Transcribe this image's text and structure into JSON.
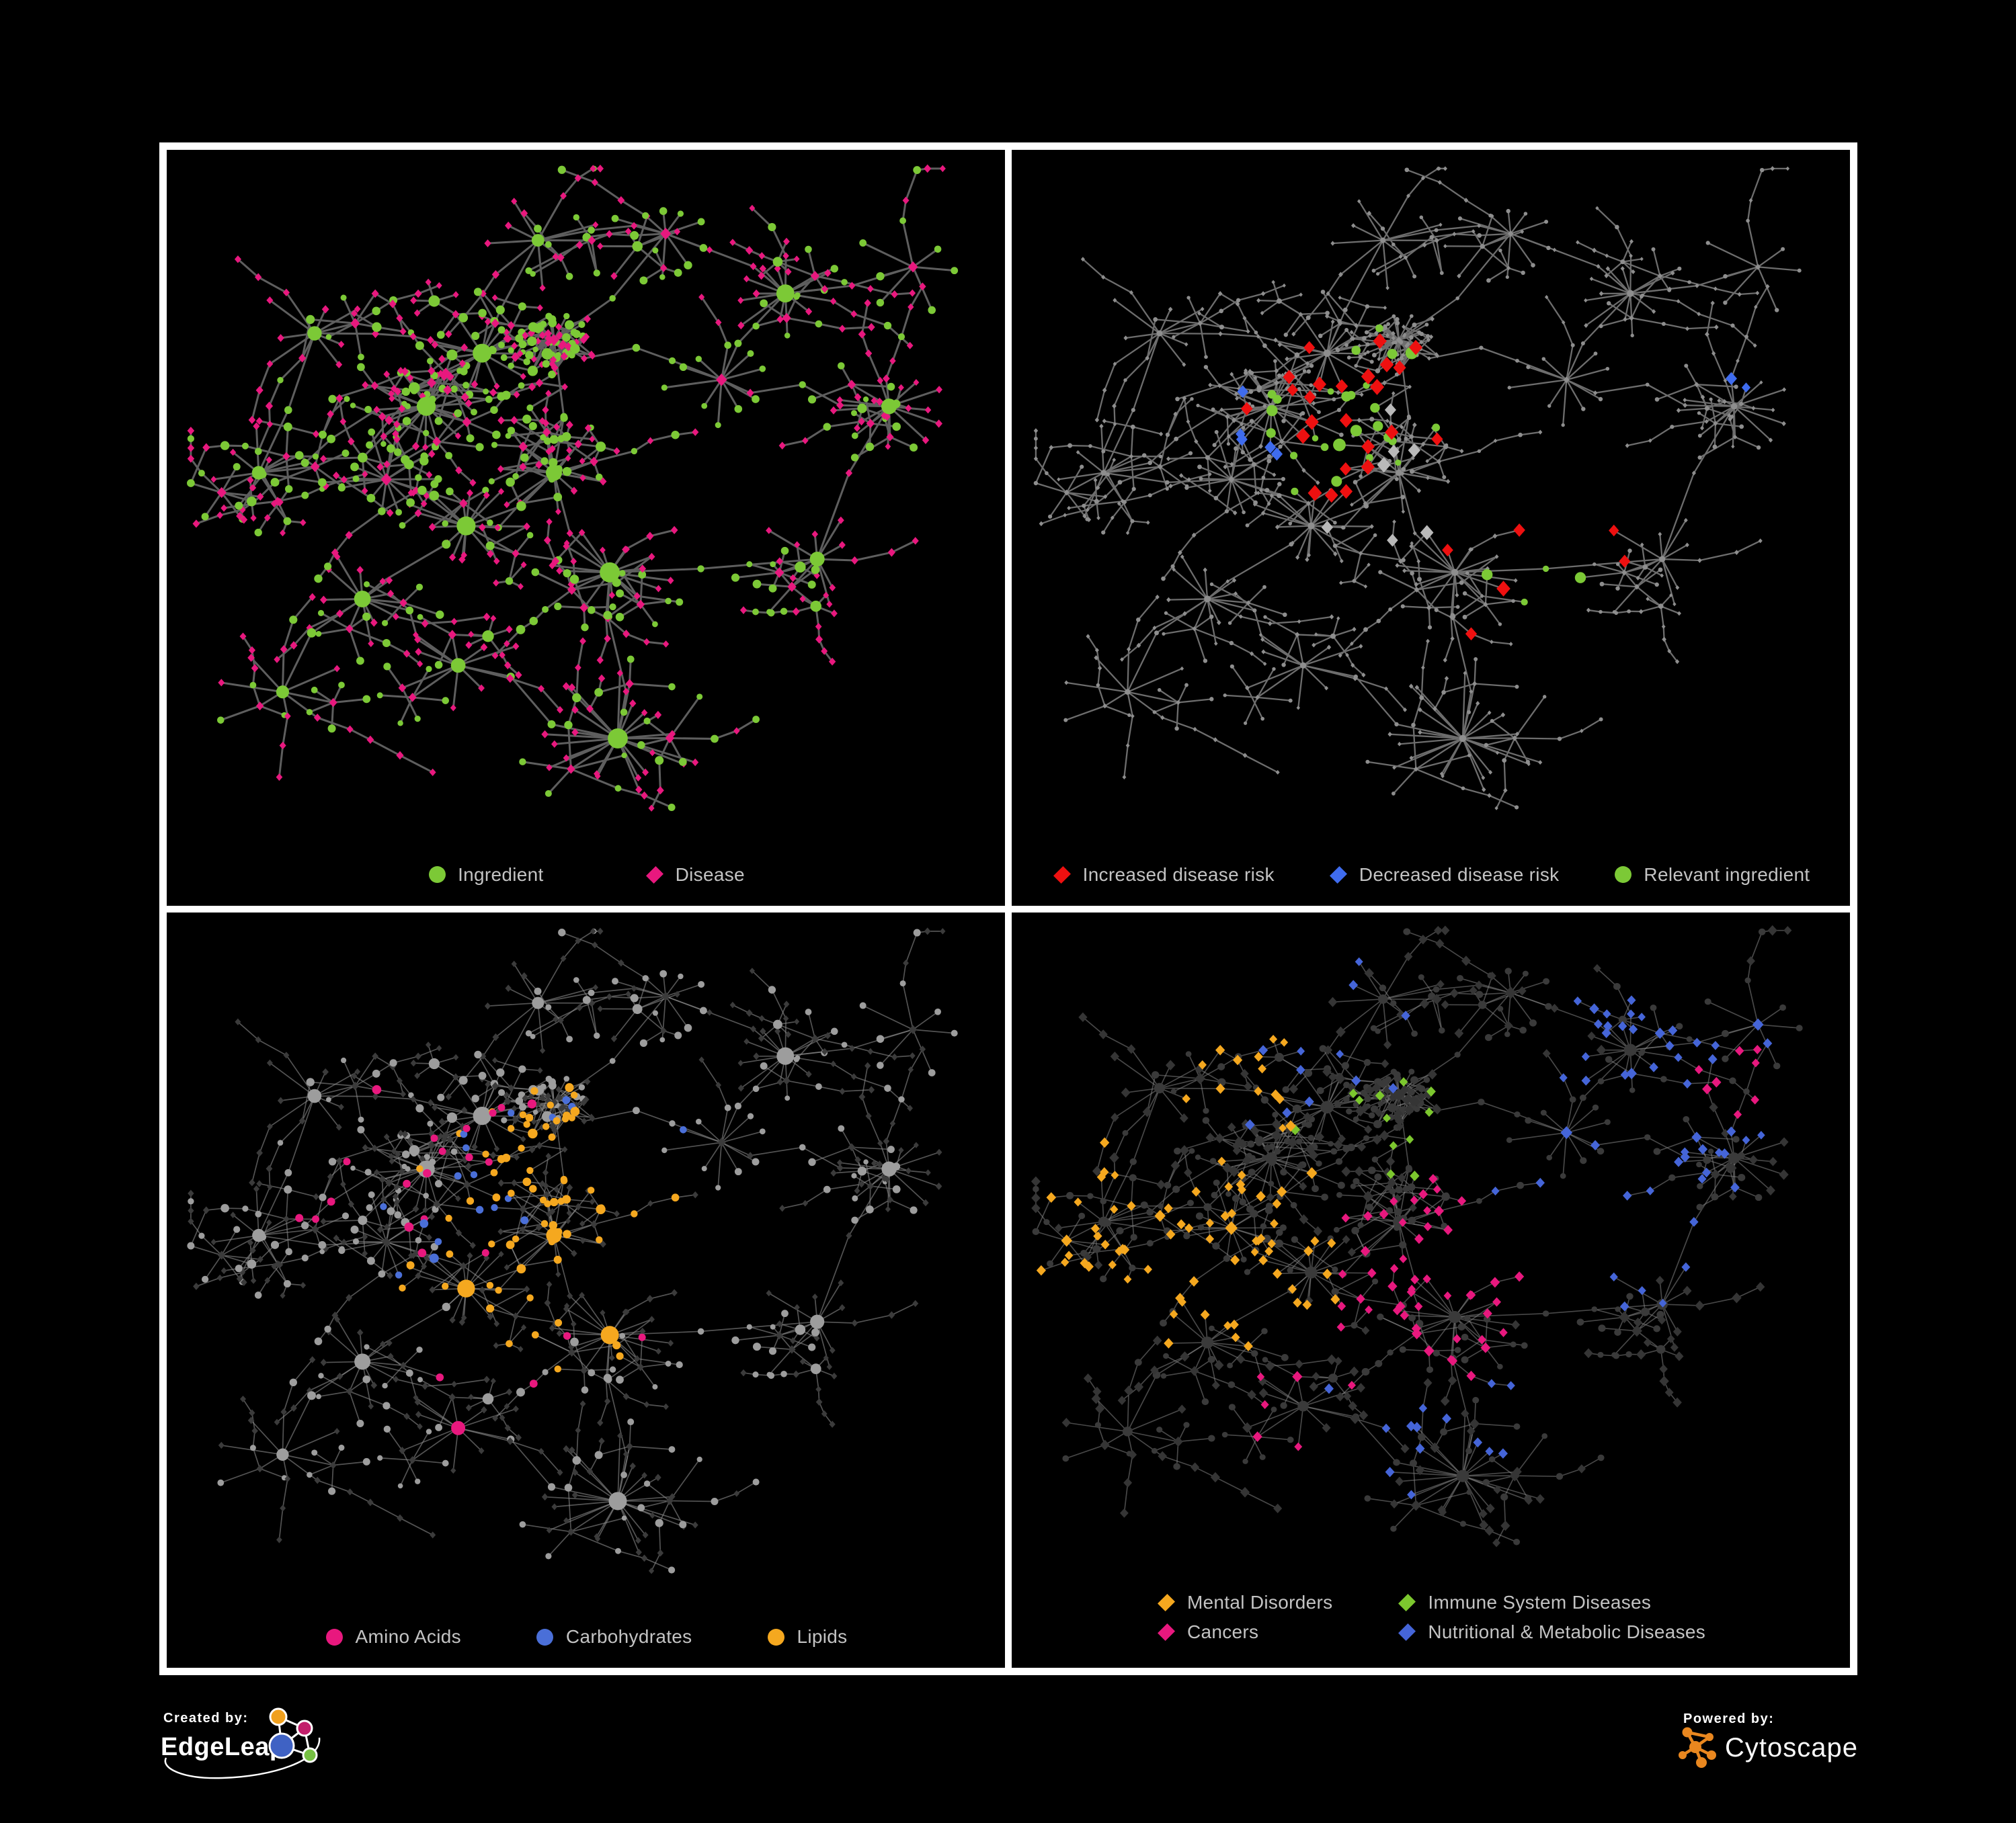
{
  "page": {
    "background": "#000000",
    "frame_color": "#ffffff"
  },
  "panels": [
    {
      "name": "ingredient-disease",
      "legend": {
        "layout": "row",
        "gap": 150,
        "items": [
          {
            "shape": "circle",
            "color": "#7cc936",
            "label": "Ingredient"
          },
          {
            "shape": "diamond",
            "color": "#e8187e",
            "label": "Disease"
          }
        ]
      },
      "edge": {
        "color": "#5e5e5e",
        "width": 3.0,
        "opacity": 1
      },
      "ingredient": {
        "shape": "circle",
        "color": "#7cc936",
        "min": 4.2,
        "varr": 2.2,
        "hubMul": 0.5,
        "hubMax": 9.5
      },
      "disease": {
        "shape": "diamond",
        "color": "#e8187e",
        "min": 5.0,
        "varr": 1.2,
        "hubMul": 0.3,
        "hubMax": 3.5
      }
    },
    {
      "name": "disease-risk",
      "legend": {
        "layout": "row",
        "gap": 80,
        "items": [
          {
            "shape": "diamond",
            "color": "#ee1010",
            "label": "Increased disease risk"
          },
          {
            "shape": "diamond",
            "color": "#3f6cee",
            "label": "Decreased disease risk"
          },
          {
            "shape": "circle",
            "color": "#7cc936",
            "label": "Relevant ingredient"
          }
        ]
      },
      "edge": {
        "color": "#6d6d6d",
        "width": 2.3,
        "opacity": 1
      },
      "ingredient": {
        "shape": "circle",
        "color": "#8e8e8e",
        "min": 2.6,
        "varr": 0.8,
        "hubMul": 0.14,
        "hubMax": 2.2
      },
      "disease": {
        "shape": "diamond",
        "color": "#8e8e8e",
        "min": 3.0,
        "varr": 0.8,
        "hubMul": 0.12,
        "hubMax": 1.8
      },
      "hlSeed": 77,
      "highlights": [
        {
          "target": "d",
          "shape": "diamond",
          "color": "#ee1010",
          "size": [
            8.5,
            12
          ],
          "entries": [
            {
              "count": 24,
              "focus": [
                0.4,
                0.4
              ],
              "spread": 0.22
            },
            {
              "count": 6,
              "focus": [
                0.62,
                0.58
              ],
              "spread": 0.3
            }
          ]
        },
        {
          "target": "d",
          "shape": "diamond",
          "color": "#b9b9b9",
          "size": [
            9,
            11.5
          ],
          "entries": [
            {
              "count": 7,
              "focus": [
                0.45,
                0.48
              ],
              "spread": 0.28
            }
          ]
        },
        {
          "target": "d",
          "shape": "diamond",
          "color": "#3f6cee",
          "size": [
            7.5,
            10
          ],
          "entries": [
            {
              "count": 5,
              "focus": [
                0.3,
                0.42
              ],
              "spread": 0.16
            },
            {
              "count": 2,
              "focus": [
                0.9,
                0.33
              ],
              "spread": 0.04
            }
          ]
        },
        {
          "target": "i",
          "shape": "circle",
          "color": "#7cc936",
          "size": [
            4.5,
            9.5
          ],
          "entries": [
            {
              "count": 26,
              "focus": [
                0.4,
                0.4
              ],
              "spread": 0.3
            },
            {
              "count": 4,
              "focus": [
                0.63,
                0.63
              ],
              "spread": 0.06
            }
          ]
        }
      ]
    },
    {
      "name": "nutrients",
      "legend": {
        "layout": "row",
        "gap": 110,
        "items": [
          {
            "shape": "circle",
            "color": "#e8187e",
            "label": "Amino Acids"
          },
          {
            "shape": "circle",
            "color": "#4a6fd8",
            "label": "Carbohydrates"
          },
          {
            "shape": "circle",
            "color": "#f5a81f",
            "label": "Lipids"
          }
        ]
      },
      "edge": {
        "color": "#8a8a8a",
        "width": 1.7,
        "opacity": 0.6
      },
      "ingredient": {
        "shape": "circle",
        "color": "#9d9d9d",
        "min": 3.8,
        "varr": 2.2,
        "hubMul": 0.5,
        "hubMax": 8.5
      },
      "disease": {
        "shape": "diamond",
        "color": "#3b3b3b",
        "min": 4.6,
        "varr": 0.9,
        "hubMul": 0.18,
        "hubMax": 2.0
      },
      "hlSeed": 913,
      "highlights": [
        {
          "target": "i",
          "shape": "circle",
          "color": "#f5a81f",
          "size": null,
          "minSize": 5.2,
          "entries": [
            {
              "count": 40,
              "focus": [
                0.48,
                0.4
              ],
              "spread": 0.1
            },
            {
              "count": 20,
              "focus": [
                0.42,
                0.55
              ],
              "spread": 0.1
            },
            {
              "count": 12,
              "focus": [
                0.5,
                0.45
              ],
              "spread": 0.5
            }
          ]
        },
        {
          "target": "i",
          "shape": "circle",
          "color": "#4a6fd8",
          "size": null,
          "minSize": 5.2,
          "entries": [
            {
              "count": 12,
              "focus": [
                0.5,
                0.42
              ],
              "spread": 0.07
            },
            {
              "count": 6,
              "focus": [
                0.45,
                0.5
              ],
              "spread": 0.6
            }
          ]
        },
        {
          "target": "i",
          "shape": "circle",
          "color": "#e8187e",
          "size": null,
          "minSize": 5.5,
          "entries": [
            {
              "count": 24,
              "focus": [
                0.4,
                0.5
              ],
              "spread": 0.65
            }
          ]
        }
      ]
    },
    {
      "name": "disease-categories",
      "legend": {
        "layout": "grid2",
        "items": [
          {
            "shape": "diamond",
            "color": "#f5a81f",
            "label": "Mental Disorders"
          },
          {
            "shape": "diamond",
            "color": "#7cc72e",
            "label": "Immune System Diseases"
          },
          {
            "shape": "diamond",
            "color": "#e8187e",
            "label": "Cancers"
          },
          {
            "shape": "diamond",
            "color": "#4565d8",
            "label": "Nutritional & Metabolic Diseases"
          }
        ]
      },
      "edge": {
        "color": "#848484",
        "width": 1.7,
        "opacity": 0.55
      },
      "ingredient": {
        "shape": "circle",
        "color": "#3a3a3a",
        "min": 4.2,
        "varr": 1.4,
        "hubMul": 0.3,
        "hubMax": 4.5
      },
      "disease": {
        "shape": "diamond",
        "color": "#353535",
        "min": 6.6,
        "varr": 1.6,
        "hubMul": 0.2,
        "hubMax": 3.0
      },
      "hlSeed": 4242,
      "highlights": [
        {
          "target": "d",
          "shape": "diamond",
          "color": "#f5a81f",
          "size": null,
          "entries": [
            {
              "count": 72,
              "focus": [
                0.2,
                0.52
              ],
              "spread": 0.11
            },
            {
              "count": 14,
              "focus": [
                0.28,
                0.18
              ],
              "spread": 0.25
            }
          ]
        },
        {
          "target": "d",
          "shape": "diamond",
          "color": "#e8187e",
          "size": null,
          "entries": [
            {
              "count": 50,
              "focus": [
                0.52,
                0.55
              ],
              "spread": 0.12
            },
            {
              "count": 8,
              "focus": [
                0.88,
                0.25
              ],
              "spread": 0.07
            },
            {
              "count": 6,
              "focus": [
                0.3,
                0.8
              ],
              "spread": 0.3
            }
          ]
        },
        {
          "target": "d",
          "shape": "diamond",
          "color": "#4565d8",
          "size": null,
          "entries": [
            {
              "count": 30,
              "focus": [
                0.72,
                0.4
              ],
              "spread": 0.13
            },
            {
              "count": 22,
              "focus": [
                0.8,
                0.18
              ],
              "spread": 0.16
            },
            {
              "count": 12,
              "focus": [
                0.3,
                0.1
              ],
              "spread": 0.22
            },
            {
              "count": 14,
              "focus": [
                0.5,
                0.75
              ],
              "spread": 0.4
            }
          ]
        },
        {
          "target": "d",
          "shape": "diamond",
          "color": "#7cc72e",
          "size": null,
          "entries": [
            {
              "count": 12,
              "focus": [
                0.5,
                0.35
              ],
              "spread": 0.6
            }
          ]
        }
      ]
    }
  ],
  "network": {
    "seed": 1337,
    "branchProb": 0.22,
    "branch2Prob": 0.1,
    "chainProb": 0.13,
    "crossEdges": 55,
    "defaultRadius": 0.055,
    "hubs": [
      [
        0.46,
        0.27,
        24,
        "d",
        0.03
      ],
      [
        0.3,
        0.37,
        18,
        "i",
        null
      ],
      [
        0.37,
        0.29,
        12,
        "i",
        null
      ],
      [
        0.25,
        0.48,
        14,
        "d",
        null
      ],
      [
        0.35,
        0.55,
        16,
        "i",
        null
      ],
      [
        0.46,
        0.47,
        12,
        "i",
        null
      ],
      [
        0.53,
        0.62,
        18,
        "i",
        null
      ],
      [
        0.22,
        0.66,
        12,
        "i",
        null
      ],
      [
        0.54,
        0.87,
        24,
        "i",
        0.075
      ],
      [
        0.75,
        0.2,
        14,
        "i",
        null
      ],
      [
        0.67,
        0.33,
        10,
        "d",
        null
      ],
      [
        0.88,
        0.37,
        13,
        "i",
        null
      ],
      [
        0.16,
        0.26,
        10,
        "i",
        null
      ],
      [
        0.6,
        0.11,
        10,
        "d",
        null
      ],
      [
        0.09,
        0.47,
        8,
        "i",
        null
      ],
      [
        0.79,
        0.6,
        9,
        "i",
        null
      ],
      [
        0.34,
        0.76,
        10,
        "i",
        null
      ],
      [
        0.91,
        0.16,
        7,
        "d",
        null
      ],
      [
        0.12,
        0.8,
        8,
        "i",
        null
      ],
      [
        0.44,
        0.12,
        9,
        "i",
        null
      ]
    ],
    "links": [
      [
        0,
        2
      ],
      [
        2,
        1
      ],
      [
        1,
        3
      ],
      [
        3,
        4
      ],
      [
        4,
        5
      ],
      [
        5,
        0
      ],
      [
        5,
        6
      ],
      [
        6,
        8
      ],
      [
        4,
        7
      ],
      [
        7,
        18
      ],
      [
        7,
        16
      ],
      [
        16,
        8
      ],
      [
        0,
        13
      ],
      [
        13,
        19
      ],
      [
        19,
        2
      ],
      [
        2,
        12
      ],
      [
        12,
        14
      ],
      [
        14,
        3
      ],
      [
        0,
        10
      ],
      [
        10,
        9
      ],
      [
        9,
        17
      ],
      [
        10,
        11
      ],
      [
        11,
        15
      ],
      [
        15,
        6
      ],
      [
        9,
        13
      ],
      [
        1,
        14
      ]
    ]
  },
  "footer": {
    "created_by": {
      "label": "Created by:",
      "brand": "EdgeLeap",
      "colors": {
        "orange": "#f0a01e",
        "pink": "#c21f6b",
        "blue": "#3f62c4",
        "green": "#76c043",
        "line": "#ffffff"
      }
    },
    "powered_by": {
      "label": "Powered by:",
      "brand": "Cytoscape",
      "colors": {
        "orange": "#e9871f"
      }
    }
  }
}
